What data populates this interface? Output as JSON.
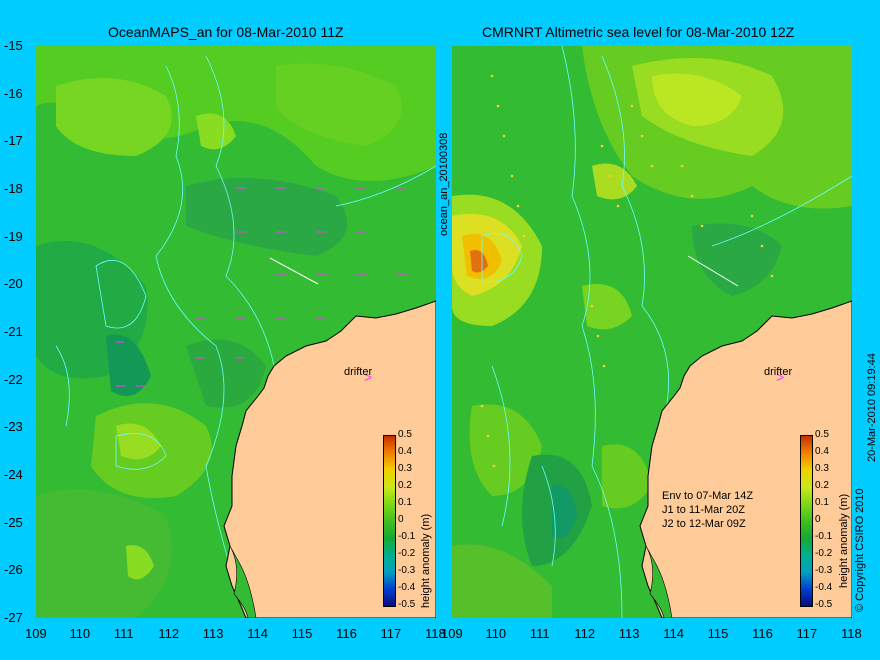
{
  "left_panel": {
    "title": "OceanMAPS_an for 08-Mar-2010 11Z",
    "colorbar_label": "height anomaly (m)"
  },
  "right_panel": {
    "title": "CMRNRT Altimetric sea level  for 08-Mar-2010 12Z",
    "colorbar_label": "height anomaly (m)",
    "notes": [
      "Env to 07-Mar 14Z",
      "J1 to 11-Mar 20Z",
      "J2 to 12-Mar 09Z"
    ]
  },
  "drifter_label": "drifter",
  "vertical_text_left": "ocean_an_20100308",
  "copyright": "© Copyright CSIRO 2010",
  "timestamp": "20-Mar-2010 09:19:44",
  "axes": {
    "y_ticks": [
      "-15",
      "-16",
      "-17",
      "-18",
      "-19",
      "-20",
      "-21",
      "-22",
      "-23",
      "-24",
      "-25",
      "-26",
      "-27"
    ],
    "x_ticks": [
      "109",
      "110",
      "111",
      "112",
      "113",
      "114",
      "115",
      "116",
      "117",
      "118"
    ],
    "lat_range": [
      -27,
      -15
    ],
    "lon_range": [
      109,
      118
    ]
  },
  "colorbar": {
    "ticks": [
      "0.5",
      "0.4",
      "0.3",
      "0.2",
      "0.1",
      "0",
      "-0.1",
      "-0.2",
      "-0.3",
      "-0.4",
      "-0.5"
    ],
    "range": [
      -0.5,
      0.5
    ],
    "colors": [
      "#0a0a80",
      "#0040d0",
      "#00a0c0",
      "#00b090",
      "#18a830",
      "#40c020",
      "#80d818",
      "#c8e818",
      "#f0d000",
      "#f08000",
      "#c83000"
    ]
  },
  "colors": {
    "background": "#00ccff",
    "land": "#ffcc99",
    "ocean_base": "#33bb33",
    "contour": "#66ffff",
    "vector": "#ff33ff"
  }
}
